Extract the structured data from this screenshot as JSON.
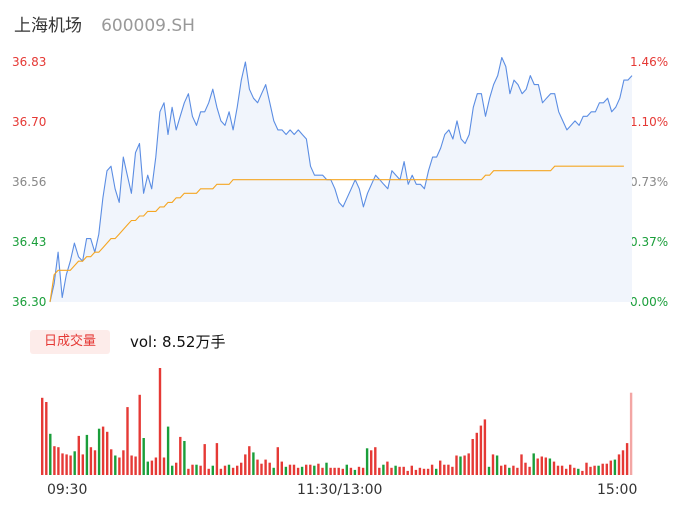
{
  "header": {
    "name": "上海机场",
    "code": "600009.SH"
  },
  "price_axis": {
    "labels": [
      "36.83",
      "36.70",
      "36.56",
      "36.43",
      "36.30"
    ],
    "colors": [
      "#e53935",
      "#e53935",
      "#888888",
      "#1a9e3a",
      "#1a9e3a"
    ]
  },
  "pct_axis": {
    "labels": [
      "1.46%",
      "1.10%",
      "0.73%",
      "0.37%",
      "0.00%"
    ],
    "colors": [
      "#e53935",
      "#e53935",
      "#888888",
      "#1a9e3a",
      "#1a9e3a"
    ]
  },
  "volume_panel": {
    "tab_label": "日成交量",
    "vol_text": "vol: 8.52万手"
  },
  "time_axis": {
    "labels": [
      "09:30",
      "11:30/13:00",
      "15:00"
    ]
  },
  "colors": {
    "price_line": "#5b8de3",
    "avg_line": "#f5a623",
    "fill": "#f1f5fc",
    "up": "#e53935",
    "down": "#1a9e3a"
  },
  "chart_data": [
    {
      "type": "line",
      "title": "",
      "xlabel": "",
      "ylabel": "",
      "ylim": [
        36.3,
        36.83
      ],
      "x_ticks": [
        "09:30",
        "11:30/13:00",
        "15:00"
      ],
      "series": [
        {
          "values": [
            36.3,
            36.34,
            36.41,
            36.31,
            36.36,
            36.39,
            36.43,
            36.4,
            36.39,
            36.44,
            36.44,
            36.41,
            36.45,
            36.53,
            36.59,
            36.6,
            36.55,
            36.52,
            36.62,
            36.58,
            36.54,
            36.63,
            36.65,
            36.54,
            36.58,
            36.55,
            36.62,
            36.72,
            36.74,
            36.67,
            36.73,
            36.68,
            36.71,
            36.74,
            36.76,
            36.71,
            36.69,
            36.72,
            36.72,
            36.74,
            36.77,
            36.73,
            36.7,
            36.69,
            36.72,
            36.68,
            36.73,
            36.79,
            36.83,
            36.77,
            36.75,
            36.74,
            36.76,
            36.78,
            36.74,
            36.7,
            36.68,
            36.68,
            36.67,
            36.68,
            36.67,
            36.68,
            36.67,
            36.66,
            36.6,
            36.58,
            36.58,
            36.58,
            36.57,
            36.57,
            36.55,
            36.52,
            36.51,
            36.53,
            36.55,
            36.57,
            36.55,
            36.51,
            36.54,
            36.56,
            36.58,
            36.57,
            36.56,
            36.55,
            36.59,
            36.58,
            36.57,
            36.61,
            36.56,
            36.58,
            36.56,
            36.56,
            36.55,
            36.59,
            36.62,
            36.62,
            36.64,
            36.67,
            36.68,
            36.66,
            36.7,
            36.66,
            36.65,
            36.67,
            36.73,
            36.76,
            36.76,
            36.71,
            36.75,
            36.78,
            36.8,
            36.84,
            36.82,
            36.76,
            36.79,
            36.78,
            36.76,
            36.77,
            36.8,
            36.78,
            36.78,
            36.74,
            36.75,
            36.76,
            36.76,
            36.72,
            36.7,
            36.68,
            36.69,
            36.7,
            36.69,
            36.71,
            36.71,
            36.72,
            36.72,
            36.74,
            36.74,
            36.75,
            36.72,
            36.73,
            36.75,
            36.79,
            36.79,
            36.8
          ],
          "avg_values": [
            36.3,
            36.36,
            36.37,
            36.37,
            36.37,
            36.37,
            36.38,
            36.39,
            36.39,
            36.4,
            36.4,
            36.41,
            36.41,
            36.42,
            36.43,
            36.44,
            36.44,
            36.45,
            36.46,
            36.47,
            36.48,
            36.48,
            36.49,
            36.49,
            36.5,
            36.5,
            36.5,
            36.51,
            36.51,
            36.52,
            36.52,
            36.53,
            36.53,
            36.54,
            36.54,
            36.54,
            36.54,
            36.55,
            36.55,
            36.55,
            36.55,
            36.56,
            36.56,
            36.56,
            36.56,
            36.57,
            36.57,
            36.57,
            36.57,
            36.57,
            36.57,
            36.57,
            36.57,
            36.57,
            36.57,
            36.57,
            36.57,
            36.57,
            36.57,
            36.57,
            36.57,
            36.57,
            36.57,
            36.57,
            36.57,
            36.57,
            36.57,
            36.57,
            36.57,
            36.57,
            36.57,
            36.57,
            36.57,
            36.57,
            36.57,
            36.57,
            36.57,
            36.57,
            36.57,
            36.57,
            36.57,
            36.57,
            36.57,
            36.57,
            36.57,
            36.57,
            36.57,
            36.57,
            36.57,
            36.57,
            36.57,
            36.57,
            36.57,
            36.57,
            36.57,
            36.57,
            36.57,
            36.57,
            36.57,
            36.57,
            36.57,
            36.57,
            36.57,
            36.57,
            36.57,
            36.57,
            36.57,
            36.58,
            36.58,
            36.59,
            36.59,
            36.59,
            36.59,
            36.59,
            36.59,
            36.59,
            36.59,
            36.59,
            36.59,
            36.59,
            36.59,
            36.59,
            36.59,
            36.59,
            36.6,
            36.6,
            36.6,
            36.6,
            36.6,
            36.6,
            36.6,
            36.6,
            36.6,
            36.6,
            36.6,
            36.6,
            36.6,
            36.6,
            36.6,
            36.6,
            36.6,
            36.6
          ]
        }
      ]
    },
    {
      "type": "bar",
      "title": "",
      "series": [
        {
          "values": [
            75,
            71,
            40,
            28,
            27,
            21,
            20,
            19,
            23,
            38,
            20,
            39,
            27,
            24,
            45,
            47,
            42,
            25,
            19,
            17,
            24,
            66,
            19,
            18,
            78,
            36,
            13,
            14,
            17,
            104,
            17,
            47,
            9,
            12,
            37,
            33,
            6,
            10,
            10,
            9,
            30,
            6,
            9,
            31,
            6,
            9,
            10,
            7,
            9,
            12,
            20,
            28,
            22,
            15,
            11,
            15,
            12,
            7,
            27,
            13,
            8,
            10,
            10,
            7,
            8,
            10,
            10,
            9,
            11,
            7,
            12,
            7,
            7,
            7,
            6,
            10,
            7,
            5,
            8,
            7,
            26,
            24,
            27,
            7,
            10,
            13,
            7,
            9,
            8,
            8,
            4,
            9,
            5,
            7,
            6,
            6,
            10,
            6,
            14,
            10,
            10,
            8,
            19,
            18,
            19,
            21,
            35,
            41,
            48,
            54,
            8,
            20,
            19,
            9,
            10,
            7,
            9,
            7,
            20,
            12,
            8,
            21,
            16,
            18,
            17,
            16,
            13,
            9,
            9,
            6,
            10,
            7,
            6,
            4,
            12,
            8,
            9,
            9,
            11,
            11,
            14,
            15,
            20,
            24,
            31,
            80
          ],
          "directions": [
            "u",
            "u",
            "d",
            "u",
            "u",
            "u",
            "u",
            "u",
            "d",
            "u",
            "u",
            "d",
            "u",
            "u",
            "d",
            "u",
            "u",
            "u",
            "d",
            "u",
            "u",
            "u",
            "u",
            "u",
            "u",
            "d",
            "d",
            "u",
            "u",
            "u",
            "u",
            "d",
            "d",
            "u",
            "u",
            "d",
            "u",
            "u",
            "d",
            "u",
            "u",
            "u",
            "d",
            "u",
            "u",
            "u",
            "d",
            "u",
            "u",
            "u",
            "u",
            "u",
            "d",
            "u",
            "u",
            "u",
            "u",
            "d",
            "u",
            "u",
            "d",
            "u",
            "u",
            "u",
            "d",
            "u",
            "u",
            "d",
            "u",
            "u",
            "d",
            "u",
            "u",
            "u",
            "u",
            "d",
            "u",
            "d",
            "u",
            "u",
            "d",
            "u",
            "u",
            "u",
            "d",
            "u",
            "u",
            "d",
            "u",
            "u",
            "u",
            "u",
            "u",
            "u",
            "u",
            "u",
            "u",
            "d",
            "u",
            "u",
            "u",
            "u",
            "u",
            "d",
            "u",
            "u",
            "u",
            "u",
            "u",
            "u",
            "d",
            "u",
            "d",
            "u",
            "u",
            "d",
            "u",
            "u",
            "u",
            "u",
            "u",
            "d",
            "u",
            "u",
            "u",
            "d",
            "u",
            "u",
            "u",
            "u",
            "u",
            "u",
            "d",
            "u",
            "u",
            "u",
            "u",
            "d",
            "u",
            "u",
            "u",
            "d",
            "u",
            "u",
            "u",
            "u"
          ]
        }
      ]
    }
  ]
}
